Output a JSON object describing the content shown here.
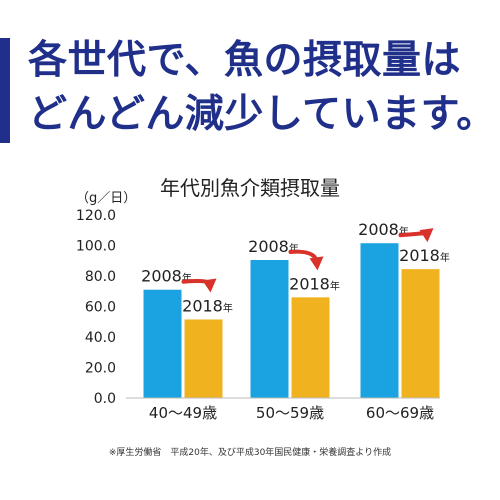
{
  "headline": {
    "line1": "各世代で、魚の摂取量は",
    "line2": "どんどん減少しています。"
  },
  "colors": {
    "headline": "#1f2f8a",
    "bar_2008": "#1aa3e0",
    "bar_2018": "#f0b21e",
    "arrow": "#d9322b"
  },
  "icons": {
    "trend_arrow": "red-curved-down-arrow-icon"
  },
  "note": "※厚生労働省　平成20年、及び平成30年国民健康・栄養調査より作成",
  "chart_data": {
    "type": "bar",
    "title": "年代別魚介類摂取量",
    "unit_label": "（g／日）",
    "categories": [
      "40～49歳",
      "50～59歳",
      "60～69歳"
    ],
    "series": [
      {
        "name": "2008年",
        "values": [
          71.0,
          90.5,
          101.5
        ],
        "color": "#1aa3e0"
      },
      {
        "name": "2018年",
        "values": [
          51.5,
          66.0,
          84.5
        ],
        "color": "#f0b21e"
      }
    ],
    "y_ticks": [
      "0.0",
      "20.0",
      "40.0",
      "60.0",
      "80.0",
      "100.0",
      "120.0"
    ],
    "ylim": [
      0,
      120
    ],
    "grid": false,
    "legend": "inline labels above bars"
  }
}
